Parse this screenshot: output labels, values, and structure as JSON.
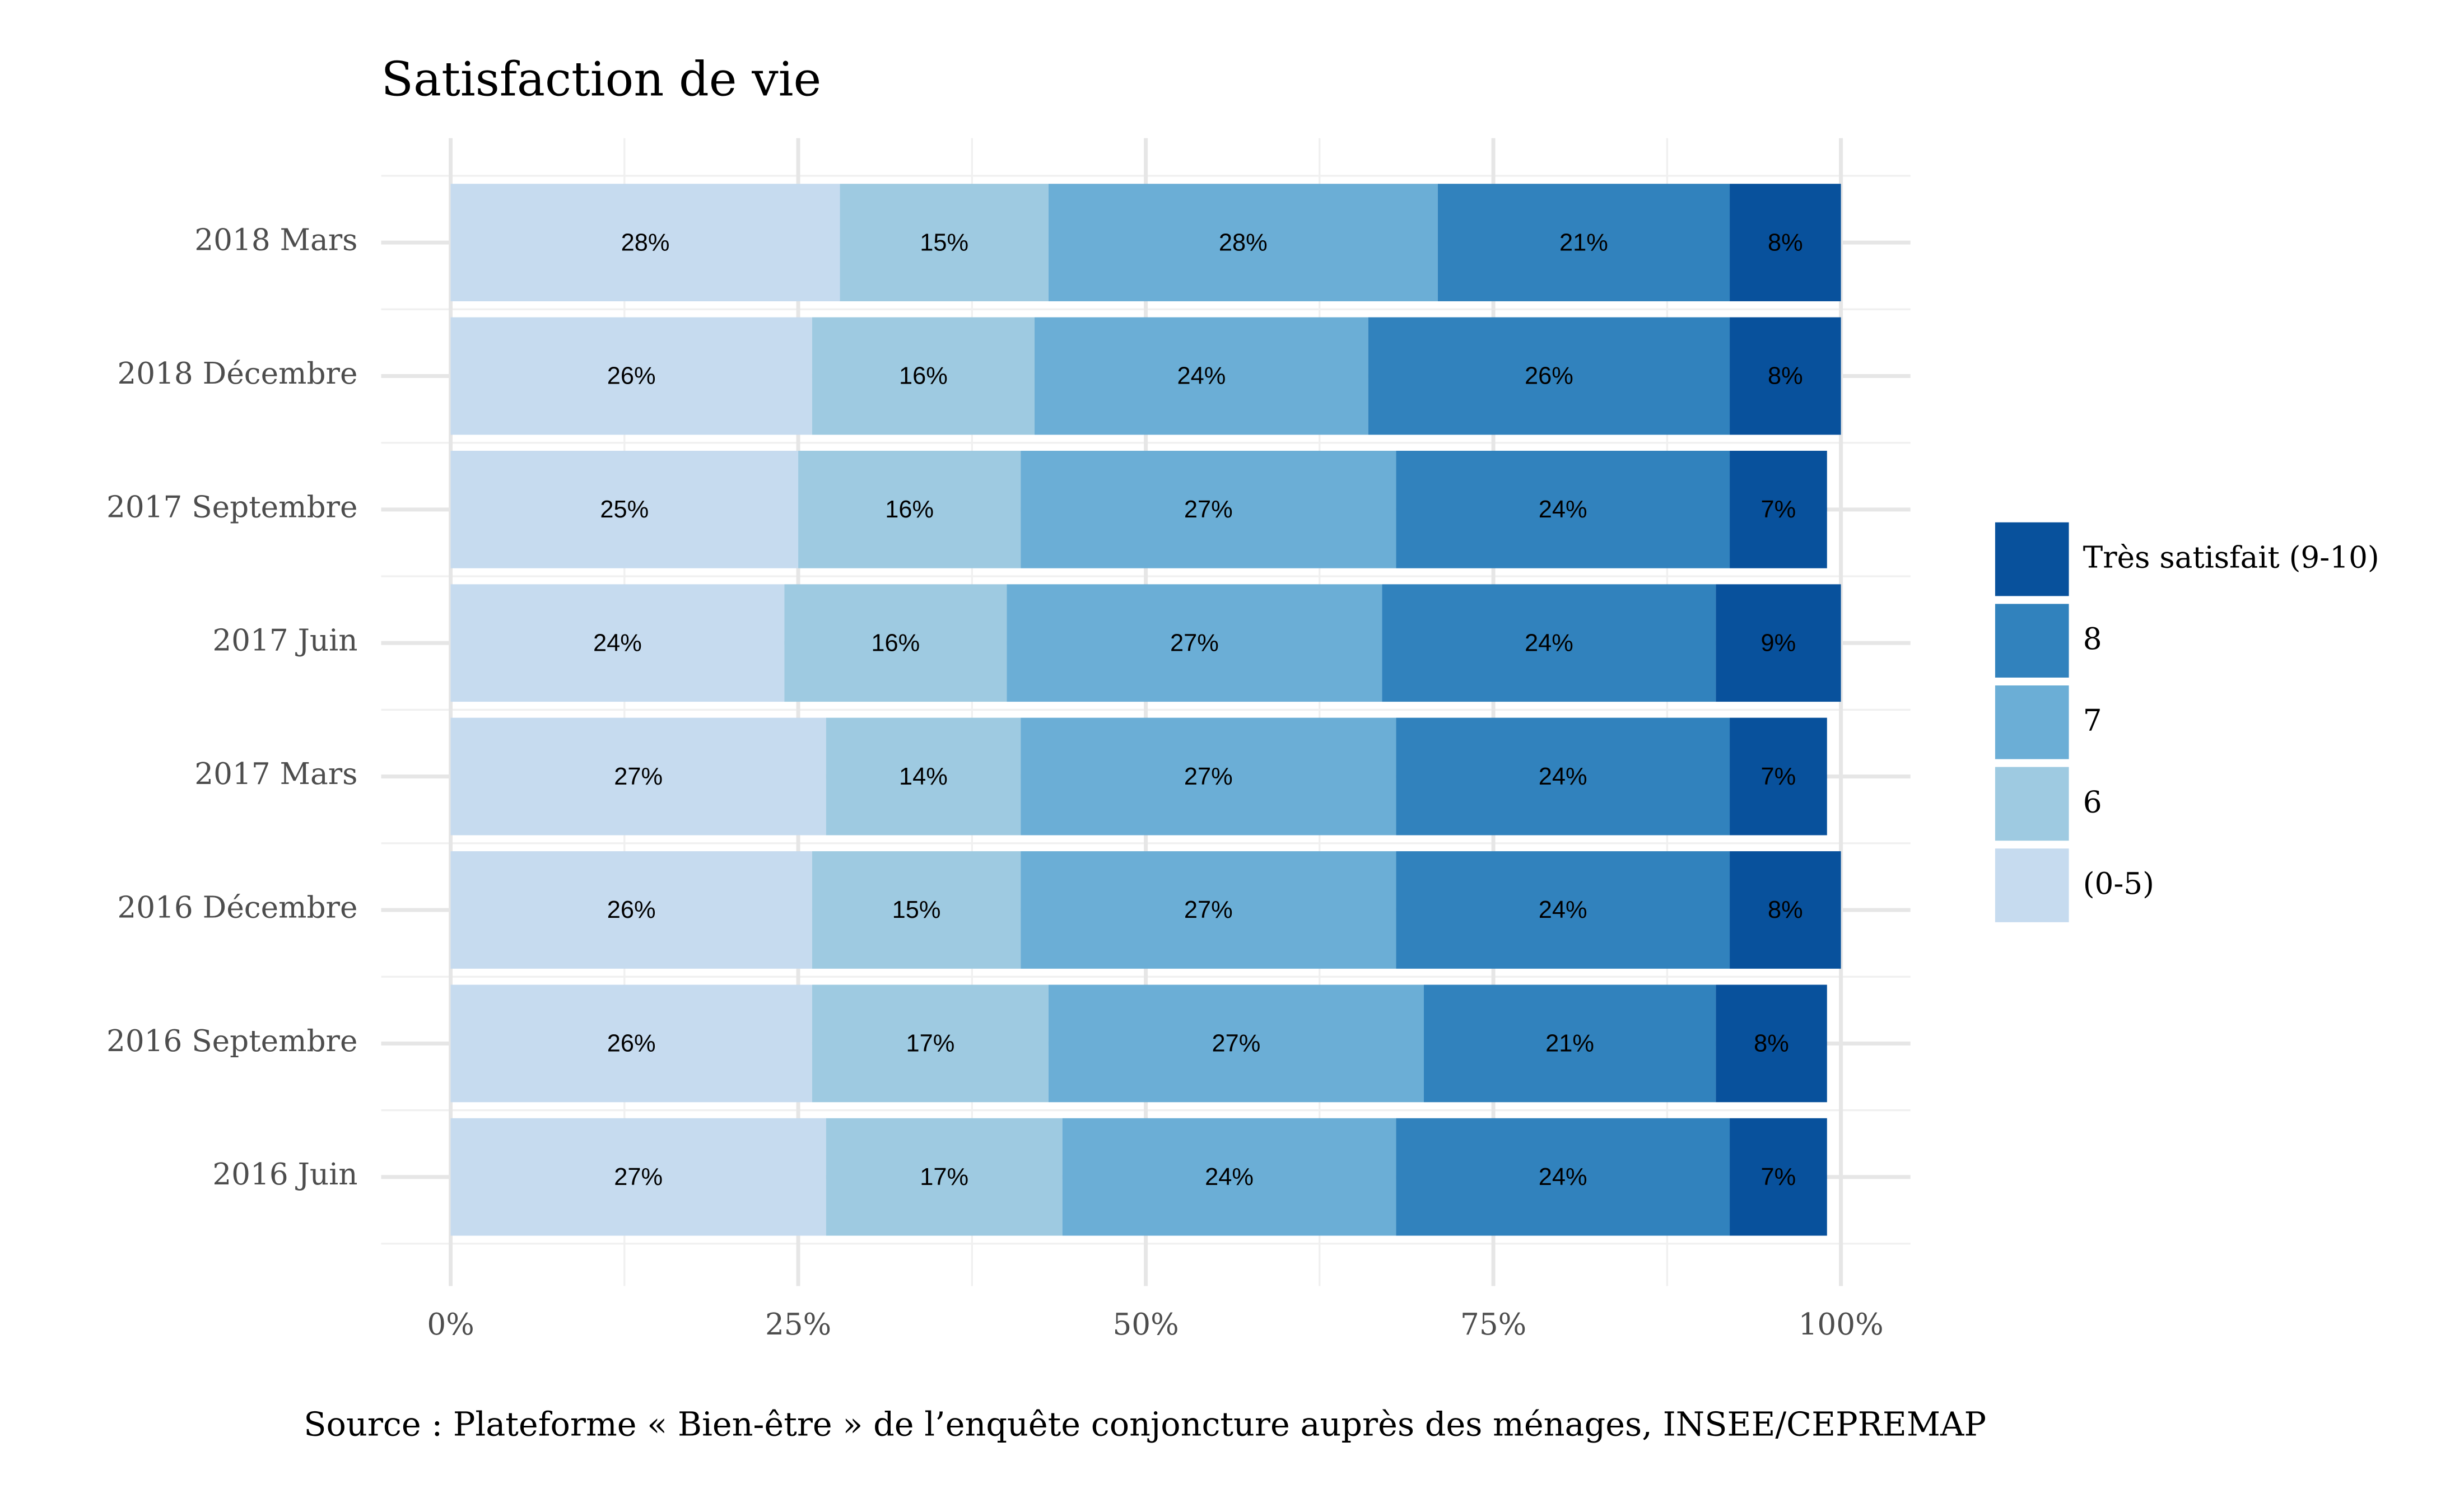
{
  "chart_data": {
    "type": "stacked-bar-horizontal",
    "title": "Satisfaction de vie",
    "caption": "Source : Plateforme « Bien-être » de l’enquête conjoncture auprès des ménages, INSEE/CEPREMAP",
    "categories": [
      "2018 Mars",
      "2018 Décembre",
      "2017 Septembre",
      "2017 Juin",
      "2017 Mars",
      "2016 Décembre",
      "2016 Septembre",
      "2016 Juin"
    ],
    "series": [
      {
        "name": "(0-5)",
        "color": "#c6dbef",
        "values": [
          28,
          26,
          25,
          24,
          27,
          26,
          26,
          27
        ],
        "value_labels": [
          "28%",
          "26%",
          "25%",
          "24%",
          "27%",
          "26%",
          "26%",
          "27%"
        ]
      },
      {
        "name": "6",
        "color": "#9ecae1",
        "values": [
          15,
          16,
          16,
          16,
          14,
          15,
          17,
          17
        ],
        "value_labels": [
          "15%",
          "16%",
          "16%",
          "16%",
          "14%",
          "15%",
          "17%",
          "17%"
        ]
      },
      {
        "name": "7",
        "color": "#6baed6",
        "values": [
          28,
          24,
          27,
          27,
          27,
          27,
          27,
          24
        ],
        "value_labels": [
          "28%",
          "24%",
          "27%",
          "27%",
          "27%",
          "27%",
          "27%",
          "24%"
        ]
      },
      {
        "name": "8",
        "color": "#3182bd",
        "values": [
          21,
          26,
          24,
          24,
          24,
          24,
          21,
          24
        ],
        "value_labels": [
          "21%",
          "26%",
          "24%",
          "24%",
          "24%",
          "24%",
          "21%",
          "24%"
        ]
      },
      {
        "name": "Très satisfait (9-10)",
        "color": "#08519c",
        "values": [
          8,
          8,
          7,
          9,
          7,
          8,
          8,
          7
        ],
        "value_labels": [
          "8%",
          "8%",
          "7%",
          "9%",
          "7%",
          "8%",
          "8%",
          "7%"
        ]
      }
    ],
    "xlim": [
      -5,
      105
    ],
    "xticks": [
      {
        "value": 0,
        "label": "0%"
      },
      {
        "value": 25,
        "label": "25%"
      },
      {
        "value": 50,
        "label": "50%"
      },
      {
        "value": 75,
        "label": "75%"
      },
      {
        "value": 100,
        "label": "100%"
      }
    ],
    "grid": true,
    "legend": "right"
  }
}
